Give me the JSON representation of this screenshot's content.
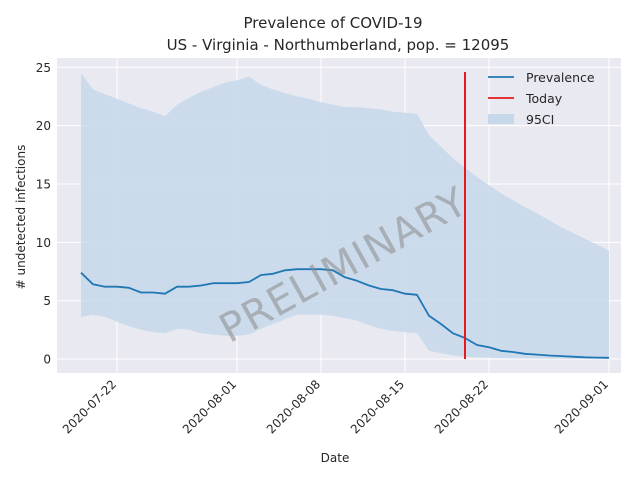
{
  "chart_data": {
    "type": "line",
    "title": "Prevalence of COVID-19",
    "subtitle": "US - Virginia - Northumberland, pop. = 12095",
    "xlabel": "Date",
    "ylabel": "# undetected infections",
    "x_ticks": [
      "2020-07-22",
      "2020-08-01",
      "2020-08-08",
      "2020-08-15",
      "2020-08-22",
      "2020-09-01"
    ],
    "y_ticks": [
      0,
      5,
      10,
      15,
      20,
      25
    ],
    "ylim": [
      -1.2,
      25.8
    ],
    "xlim": [
      "2020-07-17",
      "2020-09-02"
    ],
    "grid": true,
    "legend_position": "top-right",
    "watermark": "PRELIMINARY",
    "colors": {
      "prevalence": "#1f77b4",
      "today": "#e41a1c",
      "ci": "#c6d8ea",
      "background": "#e9e9f1"
    },
    "today": "2020-08-20",
    "series": [
      {
        "name": "Prevalence",
        "x": [
          "2020-07-19",
          "2020-07-20",
          "2020-07-21",
          "2020-07-22",
          "2020-07-23",
          "2020-07-24",
          "2020-07-25",
          "2020-07-26",
          "2020-07-27",
          "2020-07-28",
          "2020-07-29",
          "2020-07-30",
          "2020-07-31",
          "2020-08-01",
          "2020-08-02",
          "2020-08-03",
          "2020-08-04",
          "2020-08-05",
          "2020-08-06",
          "2020-08-07",
          "2020-08-08",
          "2020-08-09",
          "2020-08-10",
          "2020-08-11",
          "2020-08-12",
          "2020-08-13",
          "2020-08-14",
          "2020-08-15",
          "2020-08-16",
          "2020-08-17",
          "2020-08-18",
          "2020-08-19",
          "2020-08-20",
          "2020-08-21",
          "2020-08-22",
          "2020-08-23",
          "2020-08-24",
          "2020-08-25",
          "2020-08-26",
          "2020-08-27",
          "2020-08-28",
          "2020-08-29",
          "2020-08-30",
          "2020-08-31",
          "2020-09-01"
        ],
        "values": [
          7.4,
          6.4,
          6.2,
          6.2,
          6.1,
          5.7,
          5.7,
          5.6,
          6.2,
          6.2,
          6.3,
          6.5,
          6.5,
          6.5,
          6.6,
          7.2,
          7.3,
          7.6,
          7.7,
          7.7,
          7.7,
          7.6,
          7.0,
          6.7,
          6.3,
          6.0,
          5.9,
          5.6,
          5.5,
          3.7,
          3.0,
          2.2,
          1.8,
          1.2,
          1.0,
          0.7,
          0.6,
          0.45,
          0.38,
          0.3,
          0.25,
          0.2,
          0.15,
          0.12,
          0.1
        ]
      },
      {
        "name": "95CI",
        "x": [
          "2020-07-19",
          "2020-07-20",
          "2020-07-21",
          "2020-07-22",
          "2020-07-23",
          "2020-07-24",
          "2020-07-25",
          "2020-07-26",
          "2020-07-27",
          "2020-07-28",
          "2020-07-29",
          "2020-07-30",
          "2020-07-31",
          "2020-08-01",
          "2020-08-02",
          "2020-08-03",
          "2020-08-04",
          "2020-08-05",
          "2020-08-06",
          "2020-08-07",
          "2020-08-08",
          "2020-08-09",
          "2020-08-10",
          "2020-08-11",
          "2020-08-12",
          "2020-08-13",
          "2020-08-14",
          "2020-08-15",
          "2020-08-16",
          "2020-08-17",
          "2020-08-18",
          "2020-08-19",
          "2020-08-20",
          "2020-08-21",
          "2020-08-22",
          "2020-08-23",
          "2020-08-24",
          "2020-08-25",
          "2020-08-26",
          "2020-08-27",
          "2020-08-28",
          "2020-08-29",
          "2020-08-30",
          "2020-08-31",
          "2020-09-01"
        ],
        "upper": [
          24.5,
          23.1,
          22.7,
          22.3,
          21.9,
          21.5,
          21.2,
          20.8,
          21.8,
          22.4,
          22.9,
          23.3,
          23.7,
          23.9,
          24.2,
          23.5,
          23.1,
          22.8,
          22.5,
          22.3,
          22.0,
          21.8,
          21.6,
          21.6,
          21.5,
          21.4,
          21.2,
          21.1,
          21.0,
          19.2,
          18.2,
          17.2,
          16.4,
          15.6,
          14.9,
          14.2,
          13.6,
          13.0,
          12.5,
          11.9,
          11.3,
          10.8,
          10.3,
          9.8,
          9.3
        ],
        "lower": [
          3.6,
          3.8,
          3.6,
          3.2,
          2.8,
          2.5,
          2.3,
          2.2,
          2.6,
          2.5,
          2.2,
          2.1,
          2.0,
          2.0,
          2.1,
          2.6,
          3.0,
          3.4,
          3.8,
          3.8,
          3.8,
          3.7,
          3.5,
          3.3,
          2.9,
          2.6,
          2.4,
          2.3,
          2.2,
          0.7,
          0.5,
          0.3,
          0.2,
          0.15,
          0.1,
          0.08,
          0.05,
          0.04,
          0.03,
          0.02,
          0.02,
          0.01,
          0.01,
          0.01,
          0.0
        ]
      },
      {
        "name": "Today"
      }
    ]
  }
}
